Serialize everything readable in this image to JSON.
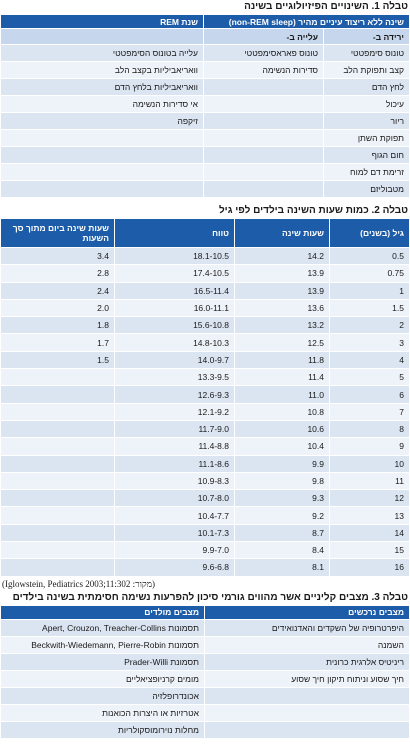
{
  "table1": {
    "title": "טבלה 1. השינויים הפיזיולוגיים בשינה",
    "header": [
      "שינה ללא ריצוד עיניים מהיר (non-REM sleep)",
      "שנת REM"
    ],
    "subheader": [
      "ירידה ב-",
      "עלייה ב-"
    ],
    "rows": [
      [
        "טונוס סימפטטי",
        "טונוס פאראסימפטטי",
        "עלייה בטונוס הסימפטטי"
      ],
      [
        "קצב ותפוקת הלב",
        "סדירות הנשימה",
        "וואריאביליות בקצב הלב"
      ],
      [
        "לחץ הדם",
        null,
        "וואריאביליות בלחץ הדם"
      ],
      [
        "עיכול",
        null,
        "אי סדירות הנשימה"
      ],
      [
        "ריור",
        null,
        "זיקפה"
      ],
      [
        "תפוקת השתן"
      ],
      [
        "חום הגוף"
      ],
      [
        "זרימת דם למוח"
      ],
      [
        "מטבוליזם"
      ]
    ]
  },
  "table2": {
    "title": "טבלה 2. כמות שעות השינה בילדים לפי גיל",
    "header": [
      "גיל (בשנים)",
      "שעות שינה",
      "טווח",
      "שעות שינה ביום מתוך סך השעות"
    ],
    "rows": [
      [
        "0.5",
        "14.2",
        "18.1-10.5",
        "3.4"
      ],
      [
        "0.75",
        "13.9",
        "17.4-10.5",
        "2.8"
      ],
      [
        "1",
        "13.9",
        "16.5-11.4",
        "2.4"
      ],
      [
        "1.5",
        "13.6",
        "16.0-11.1",
        "2.0"
      ],
      [
        "2",
        "13.2",
        "15.6-10.8",
        "1.8"
      ],
      [
        "3",
        "12.5",
        "14.8-10.3",
        "1.7"
      ],
      [
        "4",
        "11.8",
        "14.0-9.7",
        "1.5"
      ],
      [
        "5",
        "11.4",
        "13.3-9.5"
      ],
      [
        "6",
        "11.0",
        "12.6-9.3"
      ],
      [
        "7",
        "10.8",
        "12.1-9.2"
      ],
      [
        "8",
        "10.6",
        "11.7-9.0"
      ],
      [
        "9",
        "10.4",
        "11.4-8.8"
      ],
      [
        "10",
        "9.9",
        "11.1-8.6"
      ],
      [
        "11",
        "9.8",
        "10.9-8.3"
      ],
      [
        "12",
        "9.3",
        "10.7-8.0"
      ],
      [
        "13",
        "9.2",
        "10.4-7.7"
      ],
      [
        "14",
        "8.7",
        "10.1-7.3"
      ],
      [
        "15",
        "8.4",
        "9.9-7.0"
      ],
      [
        "16",
        "8.1",
        "9.6-6.8"
      ]
    ],
    "source": "(מקור: Iglowstein, Pediatrics 2003;11:302)"
  },
  "table3": {
    "title": "טבלה 3. מצבים קליניים אשר מהווים גורמי סיכון להפרעות נשימה חסימתית בשינה בילדים",
    "header": [
      "מצבים נרכשים",
      "מצבים מולדים"
    ],
    "rows": [
      [
        "היפרטרופיה של השקדים והאדנואידים",
        "תסמונות Apert, Crouzon, Treacher-Collins"
      ],
      [
        "השמנה",
        "תסמונות Beckwith-Wiedemann, Pierre-Robin"
      ],
      [
        "ריניטיס אלרגית כרונית",
        "תסמונת Prader-Willi"
      ],
      [
        "חיך שסוע וניתוח תיקון חיך שסוע",
        "מומים קרניופציאליים"
      ],
      [
        null,
        "אכונדרופלזיה"
      ],
      [
        null,
        "אטרזיות או היצרות הכואנות"
      ],
      [
        null,
        "מחלות נוירומוסקולריות"
      ]
    ]
  }
}
